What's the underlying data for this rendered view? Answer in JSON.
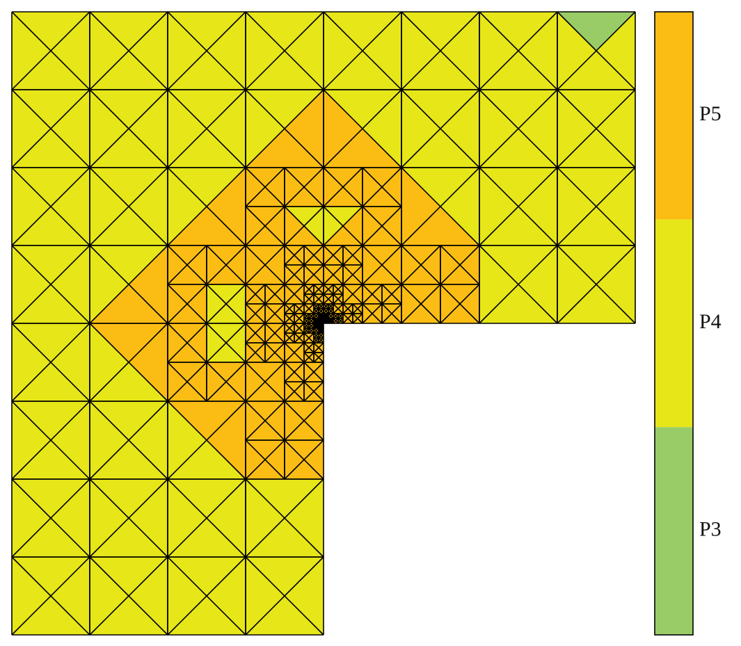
{
  "legend": {
    "items": [
      {
        "label": "P5",
        "color": "#fbbd14"
      },
      {
        "label": "P4",
        "color": "#e6e619"
      },
      {
        "label": "P3",
        "color": "#99cc66"
      }
    ]
  }
}
